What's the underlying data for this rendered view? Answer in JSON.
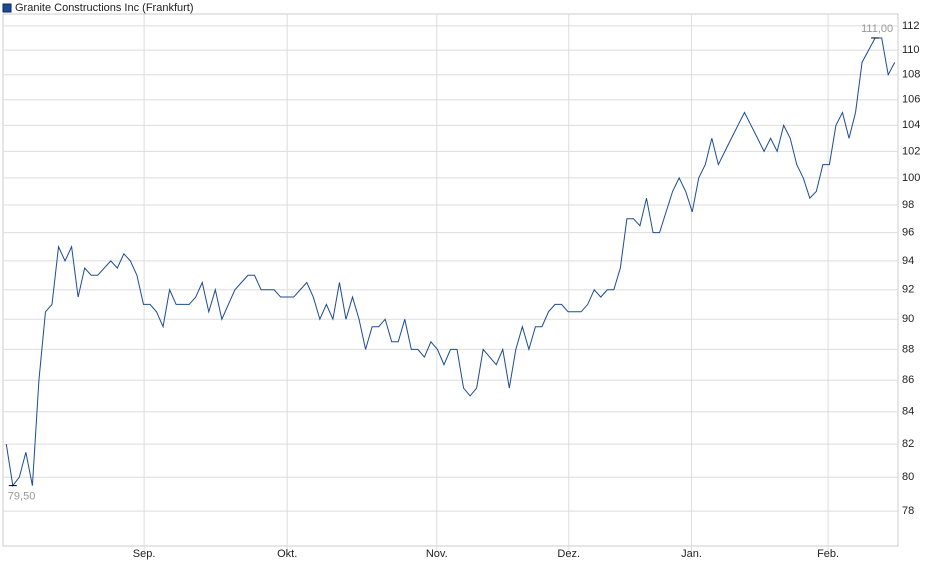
{
  "chart_data": {
    "type": "line",
    "series": [
      {
        "name": "Granite Constructions Inc (Frankfurt)",
        "color": "#1c4b96",
        "values": [
          82,
          79.5,
          80,
          81.5,
          79.5,
          86,
          90.5,
          91,
          95,
          94,
          95,
          91.5,
          93.5,
          93,
          93,
          93.5,
          94,
          93.5,
          94.5,
          94,
          93,
          91,
          91,
          90.5,
          89.5,
          92,
          91,
          91,
          91,
          91.5,
          92.5,
          90.5,
          92,
          90,
          91,
          92,
          92.5,
          93,
          93,
          92,
          92,
          92,
          91.5,
          91.5,
          91.5,
          92,
          92.5,
          91.5,
          90,
          91,
          90,
          92.5,
          90,
          91.5,
          90,
          88,
          89.5,
          89.5,
          90,
          88.5,
          88.5,
          90,
          88,
          88,
          87.5,
          88.5,
          88,
          87,
          88,
          88,
          85.5,
          85,
          85.5,
          88,
          87.5,
          87,
          88,
          85.5,
          88,
          89.5,
          88,
          89.5,
          89.5,
          90.5,
          91,
          91,
          90.5,
          90.5,
          90.5,
          91,
          92,
          91.5,
          92,
          92,
          93.5,
          97,
          97,
          96.5,
          98.5,
          96,
          96,
          97.5,
          99,
          100,
          99,
          97.5,
          100,
          101,
          103,
          101,
          102,
          103,
          104,
          105,
          104,
          103,
          102,
          103,
          102,
          104,
          103,
          101,
          100,
          98.5,
          99,
          101,
          101,
          104,
          105,
          103,
          105,
          109,
          110,
          111,
          111,
          108,
          109
        ]
      }
    ],
    "x": [
      0,
      1,
      2,
      3,
      4,
      5,
      6,
      7,
      8,
      9,
      10,
      11,
      12,
      13,
      14,
      15,
      16,
      17,
      18,
      19,
      20,
      21,
      22,
      23,
      24,
      25,
      26,
      27,
      28,
      29,
      30,
      31,
      32,
      33,
      34,
      35,
      36,
      37,
      38,
      39,
      40,
      41,
      42,
      43,
      44,
      45,
      46,
      47,
      48,
      49,
      50,
      51,
      52,
      53,
      54,
      55,
      56,
      57,
      58,
      59,
      60,
      61,
      62,
      63,
      64,
      65,
      66,
      67,
      68,
      69,
      70,
      71,
      72,
      73,
      74,
      75,
      76,
      77,
      78,
      79,
      80,
      81,
      82,
      83,
      84,
      85,
      86,
      87,
      88,
      89,
      90,
      91,
      92,
      93,
      94,
      95,
      96,
      97,
      98,
      99,
      100,
      101,
      102,
      103,
      104,
      105,
      106,
      107,
      108,
      109,
      110,
      111,
      112,
      113,
      114,
      115,
      116,
      117,
      118,
      119,
      120,
      121,
      122,
      123,
      124,
      125,
      126,
      127,
      128,
      129,
      130,
      131,
      132,
      133,
      134,
      135,
      136
    ],
    "xlim": [
      -0.5,
      136.5
    ],
    "xticks": [
      {
        "value": 21.1,
        "label": "Sep."
      },
      {
        "value": 43,
        "label": "Okt."
      },
      {
        "value": 65.9,
        "label": "Nov."
      },
      {
        "value": 86.1,
        "label": "Dez."
      },
      {
        "value": 104.9,
        "label": "Jan."
      },
      {
        "value": 125.8,
        "label": "Feb."
      }
    ],
    "ylim": [
      76,
      113
    ],
    "log_scale": true,
    "yticks": [
      78,
      80,
      82,
      84,
      86,
      88,
      90,
      92,
      94,
      96,
      98,
      100,
      102,
      104,
      106,
      108,
      110,
      112
    ],
    "grid": true,
    "annotations": [
      {
        "x": 1,
        "value": 79.5,
        "label": "79,50"
      },
      {
        "x": 133,
        "value": 111,
        "label": "111,00"
      }
    ]
  }
}
